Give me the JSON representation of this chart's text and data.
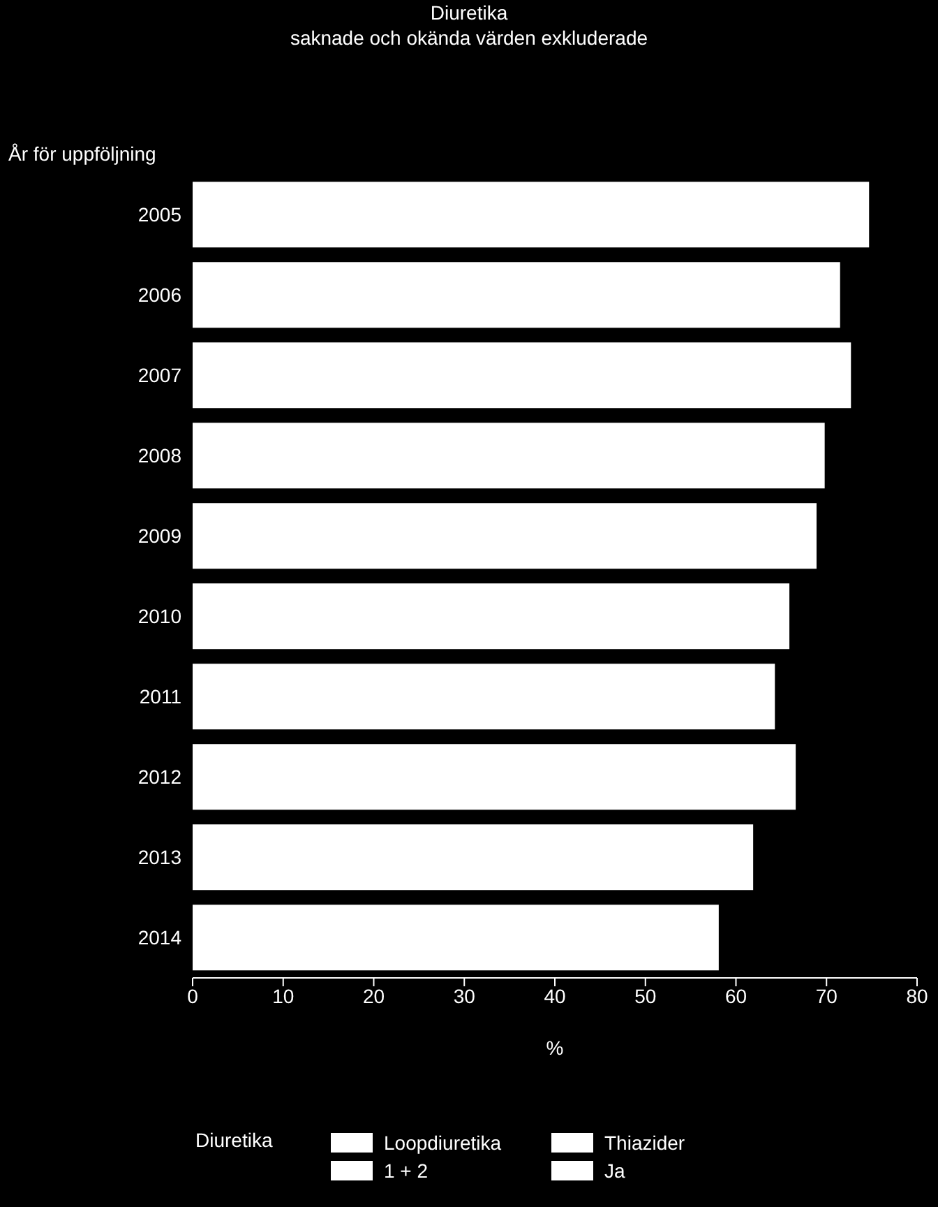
{
  "chart_data": {
    "type": "bar",
    "orientation": "horizontal",
    "stacked": true,
    "title": "Diuretika",
    "subtitle": "saknade och okända värden exkluderade",
    "ylabel": "År för uppföljning",
    "xlabel": "%",
    "legend_title": "Diuretika",
    "legend": "bottom",
    "categories": [
      "2005",
      "2006",
      "2007",
      "2008",
      "2009",
      "2010",
      "2011",
      "2012",
      "2013",
      "2014"
    ],
    "series": [
      {
        "name": "Loopdiuretika",
        "color": "#ffffff",
        "values": [
          null,
          null,
          null,
          null,
          null,
          null,
          null,
          null,
          null,
          null
        ]
      },
      {
        "name": "1 + 2",
        "color": "#ffffff",
        "values": [
          null,
          null,
          null,
          null,
          null,
          null,
          null,
          null,
          null,
          null
        ]
      },
      {
        "name": "Thiazider",
        "color": "#ffffff",
        "values": [
          null,
          null,
          null,
          null,
          null,
          null,
          null,
          null,
          null,
          null
        ]
      },
      {
        "name": "Ja",
        "color": "#ffffff",
        "values": [
          74.7,
          71.5,
          72.7,
          69.8,
          68.9,
          65.9,
          64.3,
          66.6,
          61.9,
          58.1
        ]
      }
    ],
    "xlim": [
      0,
      80
    ],
    "xticks": [
      0,
      10,
      20,
      30,
      40,
      50,
      60,
      70,
      80
    ]
  }
}
